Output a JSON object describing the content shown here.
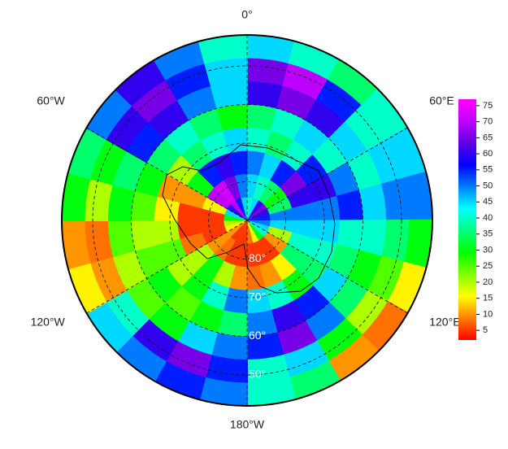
{
  "map_data": {
    "type": "polar-heatmap",
    "lonticks": [
      {
        "value": 0,
        "label": "0°"
      },
      {
        "value": -60,
        "label": "60°W"
      },
      {
        "value": 60,
        "label": "60°E"
      },
      {
        "value": -120,
        "label": "120°W"
      },
      {
        "value": 120,
        "label": "120°E"
      },
      {
        "value": 180,
        "label": "180°W"
      }
    ],
    "latticks": [
      {
        "value": 80,
        "label": "80°"
      },
      {
        "value": 70,
        "label": "70°"
      },
      {
        "value": 60,
        "label": "60°"
      },
      {
        "value": 50,
        "label": "50°"
      }
    ],
    "clim": [
      2,
      77
    ],
    "cticks": [
      5,
      10,
      15,
      20,
      25,
      30,
      35,
      40,
      45,
      50,
      55,
      60,
      65,
      70,
      75
    ],
    "colors": [
      "#ff0000",
      "#ff8000",
      "#ffff00",
      "#80ff00",
      "#00ff00",
      "#00ff80",
      "#00ffff",
      "#0080ff",
      "#0000ff",
      "#6000e0",
      "#c000ff",
      "#ff00ff"
    ],
    "values": [
      [
        40,
        45,
        60,
        65,
        60,
        55,
        50,
        45,
        40,
        30,
        15,
        8,
        5,
        5,
        5,
        10,
        15,
        20,
        30,
        45,
        60,
        70,
        55,
        45
      ],
      [
        45,
        40,
        35,
        30,
        35,
        50,
        45,
        20,
        10,
        5,
        5,
        5,
        5,
        5,
        8,
        10,
        5,
        5,
        5,
        15,
        70,
        72,
        65,
        50
      ],
      [
        50,
        45,
        55,
        65,
        60,
        50,
        45,
        40,
        35,
        15,
        10,
        8,
        10,
        20,
        30,
        20,
        8,
        5,
        5,
        10,
        30,
        55,
        60,
        55
      ],
      [
        40,
        35,
        40,
        55,
        60,
        50,
        45,
        40,
        35,
        30,
        40,
        45,
        50,
        40,
        30,
        20,
        25,
        20,
        15,
        10,
        20,
        35,
        40,
        45
      ],
      [
        35,
        40,
        45,
        40,
        50,
        55,
        40,
        35,
        45,
        55,
        60,
        50,
        35,
        30,
        25,
        30,
        25,
        20,
        25,
        30,
        35,
        40,
        35,
        30
      ],
      [
        60,
        65,
        60,
        45,
        40,
        45,
        40,
        30,
        35,
        50,
        65,
        55,
        50,
        45,
        30,
        25,
        20,
        25,
        30,
        35,
        55,
        60,
        50,
        45
      ],
      [
        65,
        70,
        55,
        40,
        45,
        50,
        35,
        25,
        20,
        30,
        45,
        40,
        55,
        65,
        60,
        40,
        10,
        8,
        20,
        30,
        60,
        65,
        55,
        45
      ],
      [
        45,
        40,
        35,
        40,
        45,
        50,
        30,
        15,
        8,
        10,
        35,
        40,
        50,
        55,
        50,
        45,
        15,
        10,
        30,
        35,
        50,
        60,
        50,
        40
      ]
    ]
  }
}
